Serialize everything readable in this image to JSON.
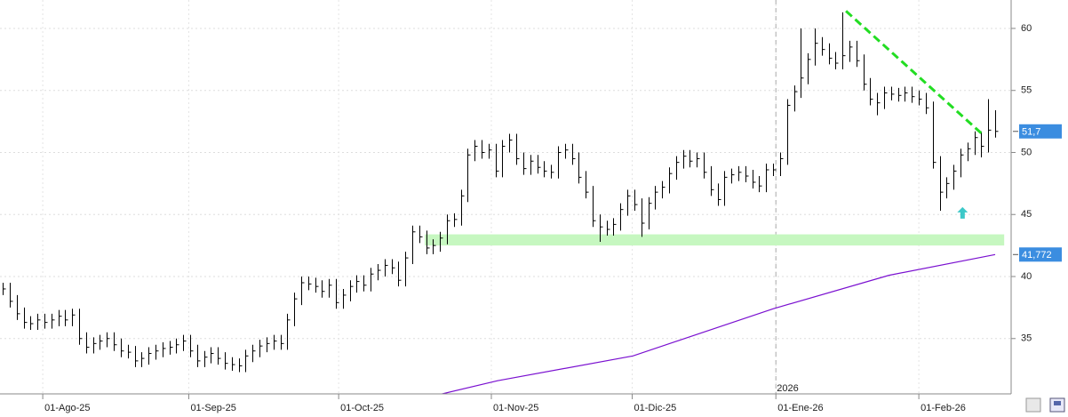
{
  "chart_data": {
    "type": "hlc",
    "color": "#000000",
    "high": [
      39.5,
      39.5,
      38.5,
      37.5,
      36.8,
      37,
      37,
      37,
      37.3,
      37.3,
      37.4,
      37.4,
      35.5,
      35.1,
      35.3,
      35.5,
      35.5,
      35,
      34.5,
      34.4,
      33.9,
      34.3,
      34.5,
      34.7,
      34.8,
      35,
      35.3,
      35.3,
      34.5,
      34,
      34.3,
      34.3,
      33.9,
      33.5,
      33.4,
      34.1,
      34.5,
      34.9,
      35.1,
      35.3,
      35.3,
      37,
      38.7,
      40,
      40,
      39.9,
      39.7,
      39.8,
      39.8,
      39,
      39.7,
      40.1,
      40.1,
      40.7,
      41,
      41.4,
      41.4,
      41.2,
      42,
      44.1,
      44.1,
      43.7,
      43,
      43.6,
      45,
      45.1,
      47,
      50.3,
      51,
      51,
      50.7,
      50.7,
      51,
      51.5,
      51.5,
      50,
      49.8,
      49.8,
      49.3,
      49,
      50.5,
      50.7,
      50.7,
      50,
      48.5,
      47.3,
      45,
      44.5,
      44.7,
      45.9,
      47,
      47,
      46.3,
      46.4,
      47.3,
      47.7,
      48.8,
      49.7,
      50.2,
      50.2,
      50,
      50,
      48.9,
      47.5,
      48.5,
      48.7,
      48.9,
      48.9,
      48.6,
      48.1,
      49.1,
      49.1,
      50,
      54.3,
      55.4,
      60,
      58,
      60,
      59.3,
      58.8,
      58.1,
      61.3,
      59,
      59,
      57.9,
      56,
      54.8,
      55.3,
      55.3,
      55.2,
      55.3,
      55.3,
      55,
      54.8,
      54.1,
      49.7,
      48,
      49,
      50.3,
      50.8,
      51.7,
      51.7,
      54.3,
      53.4
    ],
    "low": [
      38.5,
      37.5,
      36.5,
      35.8,
      35.7,
      35.7,
      35.8,
      35.8,
      36,
      36,
      36,
      34.5,
      33.8,
      33.8,
      34.1,
      34.3,
      34,
      33.5,
      33.4,
      32.7,
      32.7,
      32.9,
      33.3,
      33.5,
      33.7,
      33.8,
      34,
      33.5,
      32.7,
      32.7,
      33,
      32.9,
      32.5,
      32.4,
      32.3,
      32.3,
      33.1,
      33.5,
      33.9,
      34.1,
      34.1,
      34.1,
      36,
      37.7,
      38.9,
      38.7,
      38.3,
      38.3,
      37.4,
      37.4,
      38,
      38.7,
      38.8,
      38.8,
      39.7,
      40,
      40.2,
      39.2,
      39.2,
      41,
      42.7,
      41.8,
      41.8,
      42,
      42.6,
      44,
      44.1,
      46,
      49.3,
      49.5,
      49.5,
      48,
      48,
      50,
      49,
      48.2,
      48.2,
      48.3,
      48,
      47.9,
      47.9,
      49.5,
      49,
      47.5,
      46.3,
      44,
      42.8,
      43.3,
      43.3,
      43.7,
      44.9,
      45.3,
      43.2,
      43.8,
      45.4,
      46.3,
      46.7,
      47.8,
      48.7,
      48.8,
      48.8,
      47.9,
      46.5,
      45.7,
      45.7,
      47.5,
      47.7,
      47.6,
      47.1,
      46.8,
      46.8,
      48.1,
      48.1,
      49,
      53.3,
      54.4,
      55.5,
      57,
      57.8,
      57.1,
      56.7,
      56.7,
      57.3,
      56.9,
      55,
      53.8,
      53,
      53.5,
      54.2,
      54.1,
      54.1,
      54,
      53.8,
      53.1,
      48.7,
      45.3,
      46.3,
      47,
      48,
      49.3,
      49.8,
      49.6,
      50,
      51.2
    ],
    "close": [
      39,
      38,
      37,
      36.3,
      36.2,
      36.5,
      36.3,
      36.5,
      36.8,
      36.5,
      36.9,
      35,
      34.3,
      34.6,
      34.8,
      35,
      34.5,
      34,
      33.9,
      33.2,
      33.4,
      33.8,
      34,
      34.2,
      34.3,
      34.5,
      34.8,
      34,
      33.2,
      33.5,
      33.8,
      33.4,
      33,
      32.9,
      32.8,
      33.6,
      34,
      34.4,
      34.6,
      34.8,
      34.6,
      36.5,
      38.2,
      39.5,
      39.4,
      39.2,
      38.8,
      39.3,
      37.9,
      38.5,
      39.2,
      39.6,
      39.3,
      40.2,
      40.5,
      40.9,
      40.7,
      39.7,
      41.5,
      43.6,
      43.2,
      42.3,
      42.5,
      43.1,
      44.5,
      44.6,
      46.5,
      49.8,
      50.5,
      50,
      50.2,
      48.5,
      50.5,
      51,
      49.5,
      48.7,
      49.3,
      48.8,
      48.5,
      48.4,
      50,
      50.2,
      49.5,
      48,
      46.8,
      44.5,
      44,
      43.8,
      44.2,
      45.4,
      46.5,
      45.8,
      44.3,
      45.9,
      46.8,
      47.2,
      48.3,
      49.2,
      49.7,
      49.3,
      49.5,
      48.4,
      47,
      46.2,
      48,
      48.2,
      48.4,
      48.1,
      47.6,
      47.3,
      48.6,
      48.6,
      49.5,
      53.8,
      54.9,
      56,
      57.5,
      58.8,
      58.3,
      57.6,
      57.2,
      57.8,
      58.5,
      57.4,
      55.5,
      54.3,
      54,
      54.8,
      54.7,
      54.6,
      54.8,
      54.5,
      54.3,
      53.6,
      49.2,
      46.8,
      47.5,
      48.5,
      49.8,
      50.3,
      51.2,
      50.5,
      51.8,
      51.7
    ],
    "xlim": [
      -0.4,
      145.3
    ],
    "xticks": [
      {
        "value": 5.76,
        "label": "01-Ago-25"
      },
      {
        "value": 26.8,
        "label": "01-Sep-25"
      },
      {
        "value": 48.4,
        "label": "01-Oct-25"
      },
      {
        "value": 70.4,
        "label": "01-Nov-25"
      },
      {
        "value": 90.7,
        "label": "01-Dic-25"
      },
      {
        "value": 111.4,
        "label": "01-Ene-26"
      },
      {
        "value": 132.0,
        "label": "01-Feb-26"
      }
    ],
    "ylim": [
      30.54,
      62.29
    ],
    "yticks": [
      35,
      40,
      45,
      50,
      55,
      60
    ],
    "grid": true,
    "year_marker": {
      "value": 111.4,
      "label": "2026"
    },
    "last_price": {
      "value": 51.7,
      "label": "51,7"
    },
    "moving_average": {
      "color": "#7a10d0",
      "x": [
        61.5,
        71.3,
        90.8,
        111.0,
        127.7,
        143.0
      ],
      "values": [
        30.3,
        31.6,
        33.6,
        37.4,
        40.1,
        41.772
      ],
      "last_value": {
        "value": 41.772,
        "label": "41,772"
      }
    },
    "trendline": {
      "color": "#22dd22",
      "x": [
        121.5,
        141.1
      ],
      "values": [
        61.4,
        51.5
      ]
    },
    "support_band": {
      "color": "#c6f7c0",
      "x": [
        60.8,
        144.3
      ],
      "values": [
        42.5,
        43.4
      ]
    },
    "signal_arrow": {
      "color": "#3cc8c8",
      "x": 138.3,
      "value": 45.6
    }
  }
}
